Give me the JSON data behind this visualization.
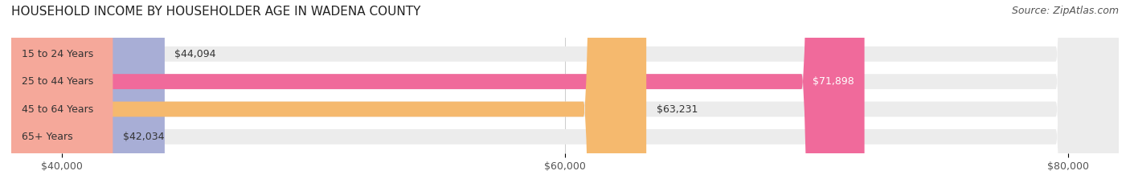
{
  "title": "HOUSEHOLD INCOME BY HOUSEHOLDER AGE IN WADENA COUNTY",
  "source": "Source: ZipAtlas.com",
  "categories": [
    "15 to 24 Years",
    "25 to 44 Years",
    "45 to 64 Years",
    "65+ Years"
  ],
  "values": [
    44094,
    71898,
    63231,
    42034
  ],
  "bar_colors": [
    "#a8aed6",
    "#f06a9b",
    "#f5b96e",
    "#f5a89a"
  ],
  "bar_bg_color": "#ececec",
  "xlim_min": 38000,
  "xlim_max": 82000,
  "xticks": [
    40000,
    60000,
    80000
  ],
  "xtick_labels": [
    "$40,000",
    "$60,000",
    "$80,000"
  ],
  "title_fontsize": 11,
  "source_fontsize": 9,
  "label_fontsize": 9,
  "value_fontsize": 9,
  "bar_height": 0.55,
  "bg_color": "#ffffff",
  "grid_color": "#cccccc"
}
